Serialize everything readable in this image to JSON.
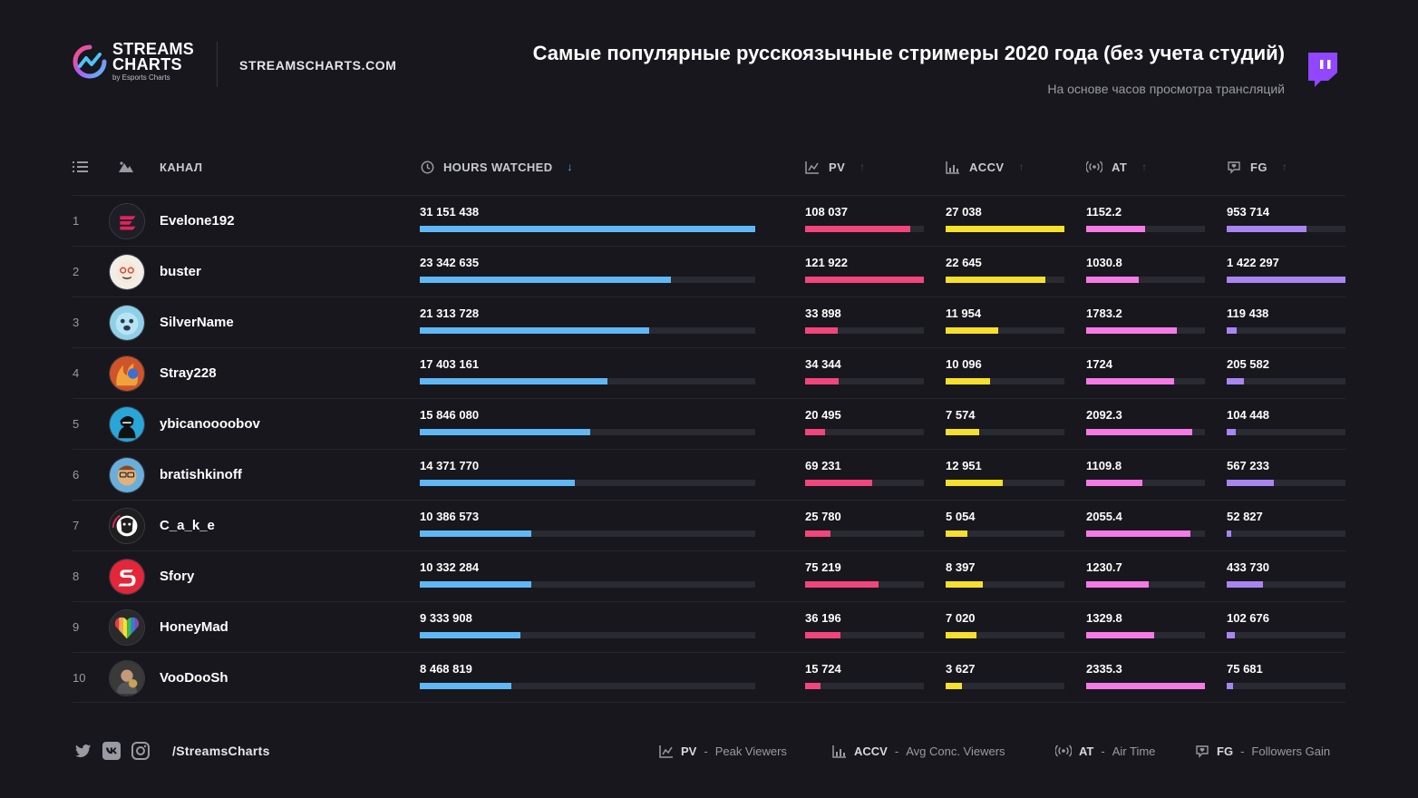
{
  "brand": {
    "line1": "STREAMS",
    "line2": "CHARTS",
    "byline": "by Esports Charts",
    "site": "STREAMSCHARTS.COM"
  },
  "colors": {
    "background": "#17171d",
    "hw": "#5fb8f5",
    "pv": "#f2457b",
    "accv": "#f7e02b",
    "at": "#f57ae6",
    "fg": "#a985f2",
    "twitch": "#9146ff"
  },
  "header": {
    "list_icon": "list-icon",
    "avatar_icon": "image-icon",
    "channel": "КАНАЛ",
    "hw": "HOURS WATCHED",
    "pv": "PV",
    "accv": "ACCV",
    "at": "AT",
    "fg": "FG",
    "sort_active": "↓",
    "sort_inactive": "↑"
  },
  "chart_data": {
    "type": "table",
    "title": "Самые популярные русскоязычные стримеры 2020 года (без учета студий)",
    "subtitle": "На основе часов просмотра трансляций",
    "columns": [
      "КАНАЛ",
      "HOURS WATCHED",
      "PV",
      "ACCV",
      "AT",
      "FG"
    ],
    "rows": [
      {
        "rank": "1",
        "channel": "Evelone192",
        "hw": "31 151 438",
        "pv": "108 037",
        "accv": "27 038",
        "at": "1152.2",
        "fg": "953 714",
        "hw_v": 31151438,
        "pv_v": 108037,
        "accv_v": 27038,
        "at_v": 1152.2,
        "fg_v": 953714
      },
      {
        "rank": "2",
        "channel": "buster",
        "hw": "23 342 635",
        "pv": "121 922",
        "accv": "22 645",
        "at": "1030.8",
        "fg": "1 422 297",
        "hw_v": 23342635,
        "pv_v": 121922,
        "accv_v": 22645,
        "at_v": 1030.8,
        "fg_v": 1422297
      },
      {
        "rank": "3",
        "channel": "SilverName",
        "hw": "21 313 728",
        "pv": "33 898",
        "accv": "11 954",
        "at": "1783.2",
        "fg": "119 438",
        "hw_v": 21313728,
        "pv_v": 33898,
        "accv_v": 11954,
        "at_v": 1783.2,
        "fg_v": 119438
      },
      {
        "rank": "4",
        "channel": "Stray228",
        "hw": "17 403 161",
        "pv": "34 344",
        "accv": "10 096",
        "at": "1724",
        "fg": "205 582",
        "hw_v": 17403161,
        "pv_v": 34344,
        "accv_v": 10096,
        "at_v": 1724,
        "fg_v": 205582
      },
      {
        "rank": "5",
        "channel": "ybicanoooobov",
        "hw": "15 846 080",
        "pv": "20 495",
        "accv": "7 574",
        "at": "2092.3",
        "fg": "104 448",
        "hw_v": 15846080,
        "pv_v": 20495,
        "accv_v": 7574,
        "at_v": 2092.3,
        "fg_v": 104448
      },
      {
        "rank": "6",
        "channel": "bratishkinoff",
        "hw": "14 371 770",
        "pv": "69 231",
        "accv": "12 951",
        "at": "1109.8",
        "fg": "567 233",
        "hw_v": 14371770,
        "pv_v": 69231,
        "accv_v": 12951,
        "at_v": 1109.8,
        "fg_v": 567233
      },
      {
        "rank": "7",
        "channel": "C_a_k_e",
        "hw": "10 386 573",
        "pv": "25 780",
        "accv": "5 054",
        "at": "2055.4",
        "fg": "52 827",
        "hw_v": 10386573,
        "pv_v": 25780,
        "accv_v": 5054,
        "at_v": 2055.4,
        "fg_v": 52827
      },
      {
        "rank": "8",
        "channel": "Sfory",
        "hw": "10 332 284",
        "pv": "75 219",
        "accv": "8 397",
        "at": "1230.7",
        "fg": "433 730",
        "hw_v": 10332284,
        "pv_v": 75219,
        "accv_v": 8397,
        "at_v": 1230.7,
        "fg_v": 433730
      },
      {
        "rank": "9",
        "channel": "HoneyMad",
        "hw": "9 333 908",
        "pv": "36 196",
        "accv": "7 020",
        "at": "1329.8",
        "fg": "102 676",
        "hw_v": 9333908,
        "pv_v": 36196,
        "accv_v": 7020,
        "at_v": 1329.8,
        "fg_v": 102676
      },
      {
        "rank": "10",
        "channel": "VooDooSh",
        "hw": "8 468 819",
        "pv": "15 724",
        "accv": "3 627",
        "at": "2335.3",
        "fg": "75 681",
        "hw_v": 8468819,
        "pv_v": 15724,
        "accv_v": 3627,
        "at_v": 2335.3,
        "fg_v": 75681
      }
    ]
  },
  "avatars": [
    {
      "icon": "evelone-logo-icon",
      "bg": "#1e1e26",
      "fg": "#e0245e"
    },
    {
      "icon": "buster-face-icon",
      "bg": "#f2eee6",
      "fg": "#d04a3a"
    },
    {
      "icon": "silvername-face-icon",
      "bg": "#8fd0e8",
      "fg": "#2b3a4a"
    },
    {
      "icon": "stray-fire-icon",
      "bg": "#d0542a",
      "fg": "#3c6fd6"
    },
    {
      "icon": "che-portrait-icon",
      "bg": "#2aa5d8",
      "fg": "#111111"
    },
    {
      "icon": "bratishkin-face-icon",
      "bg": "#6aaedc",
      "fg": "#e3b07a"
    },
    {
      "icon": "cake-lion-icon",
      "bg": "#1e1e1e",
      "fg": "#e0245e"
    },
    {
      "icon": "sfory-logo-icon",
      "bg": "#e3263a",
      "fg": "#ffffff"
    },
    {
      "icon": "rainbow-heart-icon",
      "bg": "#2a2a2a",
      "fg": "#ffffff"
    },
    {
      "icon": "voodoosh-portrait-icon",
      "bg": "#3a3a3a",
      "fg": "#c9a256"
    }
  ],
  "footer": {
    "socials": [
      "twitter-icon",
      "vk-icon",
      "instagram-icon"
    ],
    "handle": "/StreamsCharts",
    "legend": [
      {
        "abbr": "PV",
        "sep": "-",
        "desc": "Peak Viewers",
        "icon": "peak-chart-icon"
      },
      {
        "abbr": "ACCV",
        "sep": "-",
        "desc": "Avg Conc. Viewers",
        "icon": "avg-chart-icon"
      },
      {
        "abbr": "AT",
        "sep": "-",
        "desc": "Air Time",
        "icon": "broadcast-icon"
      },
      {
        "abbr": "FG",
        "sep": "-",
        "desc": "Followers Gain",
        "icon": "heart-chat-icon"
      }
    ]
  }
}
